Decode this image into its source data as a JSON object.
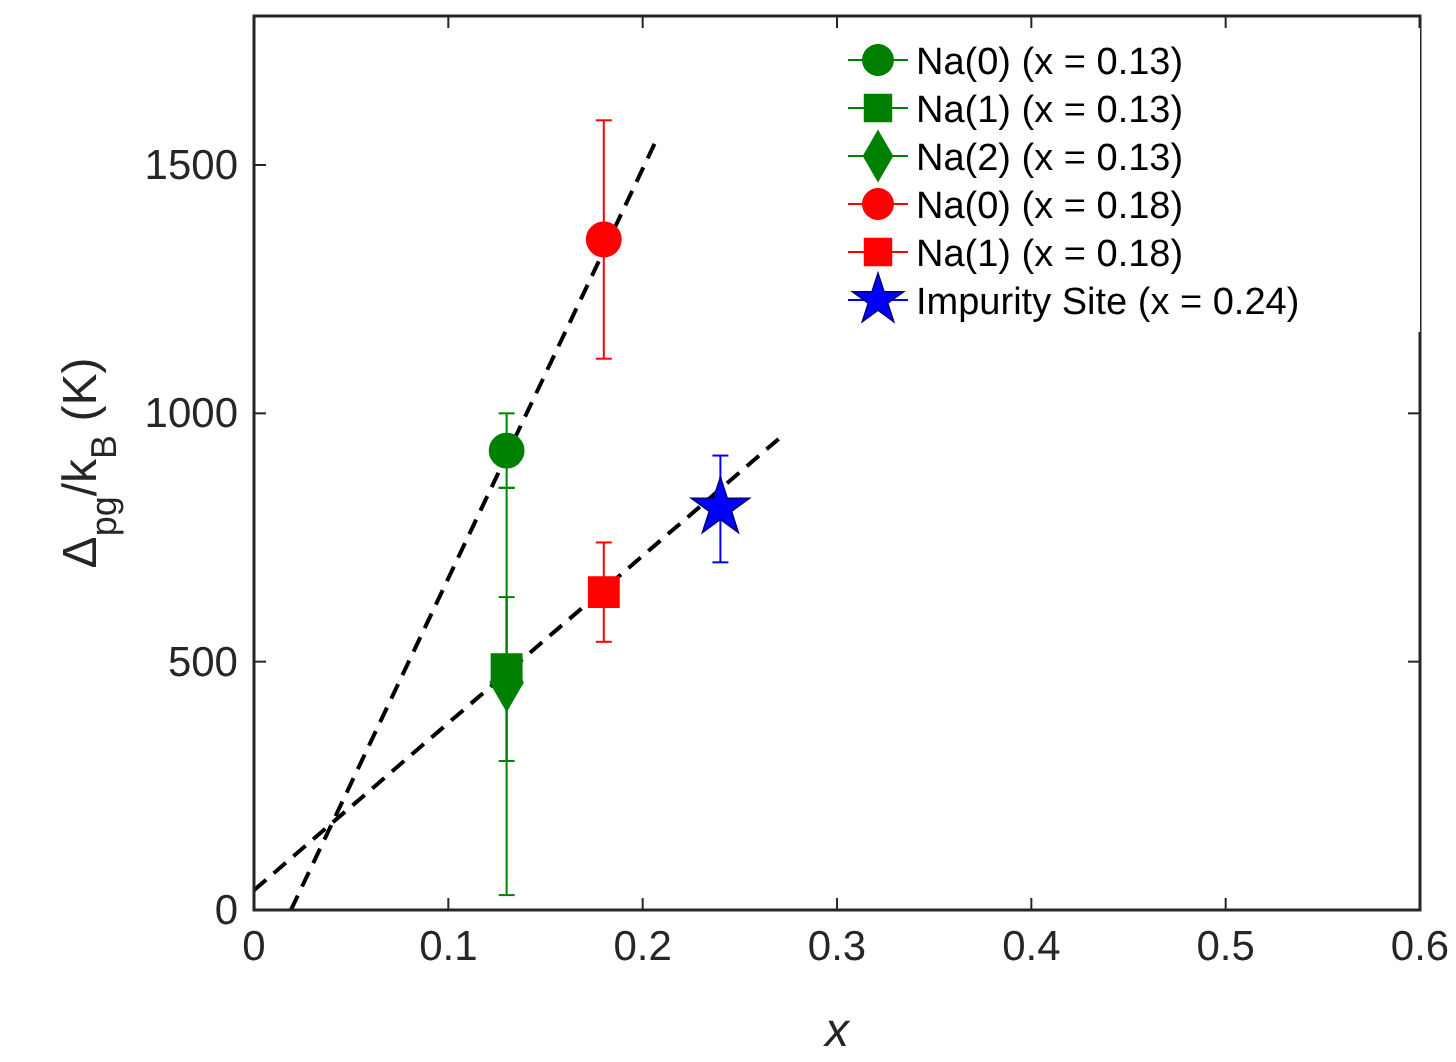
{
  "chart_data": {
    "type": "scatter",
    "xlabel": "x",
    "ylabel": "Δ$_{pg}$/k$_{B}$ (K)",
    "xlim": [
      0,
      0.6
    ],
    "ylim": [
      0,
      1800
    ],
    "xticks": [
      0,
      0.1,
      0.2,
      0.3,
      0.4,
      0.5,
      0.6
    ],
    "yticks": [
      0,
      500,
      1000,
      1500
    ],
    "grid": false,
    "legend": "top right",
    "series": [
      {
        "name": "Na(0) (x = 0.13)",
        "color": "#008000",
        "marker": "circle",
        "x": [
          0.13
        ],
        "values": [
          925
        ],
        "errors": [
          [
            850,
            1000
          ]
        ]
      },
      {
        "name": "Na(1) (x = 0.13)",
        "color": "#008000",
        "marker": "square",
        "x": [
          0.13
        ],
        "values": [
          485
        ],
        "errors": [
          [
            300,
            630
          ]
        ]
      },
      {
        "name": "Na(2) (x = 0.13)",
        "color": "#008000",
        "marker": "diamond",
        "x": [
          0.13
        ],
        "values": [
          458
        ],
        "errors": [
          [
            30,
            850
          ]
        ]
      },
      {
        "name": "Na(0) (x = 0.18)",
        "color": "#ff0000",
        "marker": "circle",
        "x": [
          0.18
        ],
        "values": [
          1350
        ],
        "errors": [
          [
            1110,
            1590
          ]
        ]
      },
      {
        "name": "Na(1) (x = 0.18)",
        "color": "#ff0000",
        "marker": "square",
        "x": [
          0.18
        ],
        "values": [
          640
        ],
        "errors": [
          [
            540,
            740
          ]
        ]
      },
      {
        "name": "Impurity Site (x = 0.24)",
        "color": "#0000ff",
        "marker": "star",
        "x": [
          0.24
        ],
        "values": [
          810
        ],
        "errors": [
          [
            700,
            915
          ]
        ]
      },
      {
        "type": "line",
        "color": "#000000",
        "marker": "none",
        "line_style": "dashed",
        "x": [
          0.019,
          0.207
        ],
        "values": [
          0,
          1550
        ]
      },
      {
        "type": "line",
        "color": "#000000",
        "marker": "none",
        "line_style": "dashed",
        "x": [
          0,
          0.271
        ],
        "values": [
          40,
          952
        ]
      }
    ]
  }
}
